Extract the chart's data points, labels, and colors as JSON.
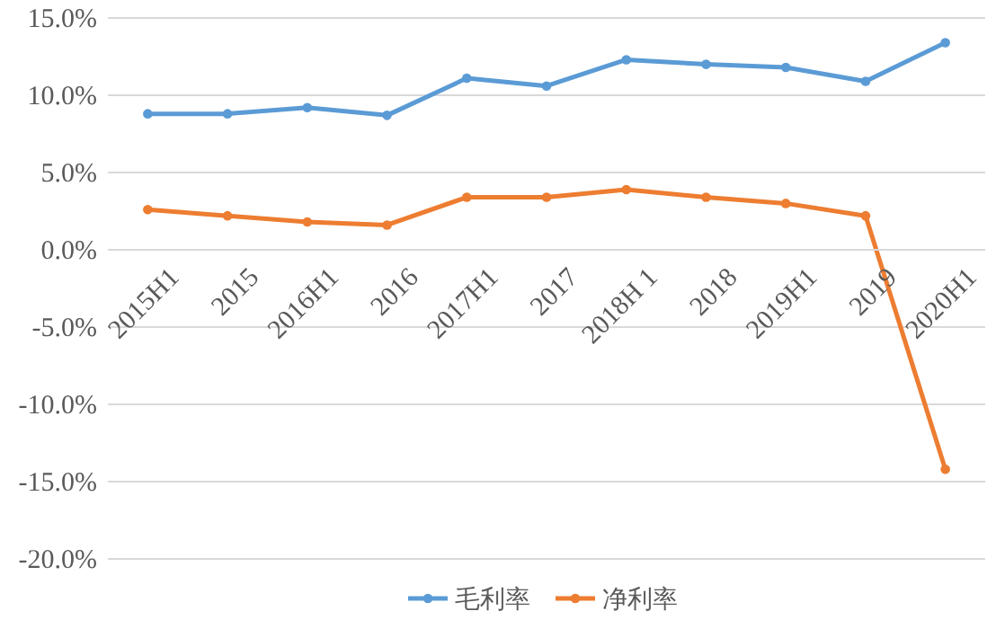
{
  "chart_data": {
    "type": "line",
    "categories": [
      "2015H1",
      "2015",
      "2016H1",
      "2016",
      "2017H1",
      "2017",
      "2018H 1",
      "2018",
      "2019H1",
      "2019",
      "2020H1"
    ],
    "series": [
      {
        "name": "毛利率",
        "color": "#5b9bd5",
        "values": [
          8.8,
          8.8,
          9.2,
          8.7,
          11.1,
          10.6,
          12.3,
          12.0,
          11.8,
          10.9,
          13.4
        ]
      },
      {
        "name": "净利率",
        "color": "#ed7d31",
        "values": [
          2.6,
          2.2,
          1.8,
          1.6,
          3.4,
          3.4,
          3.9,
          3.4,
          3.0,
          2.2,
          -14.2
        ]
      }
    ],
    "ylim": [
      -20,
      15
    ],
    "yticks": [
      {
        "value": -20,
        "label": "-20.0%"
      },
      {
        "value": -15,
        "label": "-15.0%"
      },
      {
        "value": -10,
        "label": "-10.0%"
      },
      {
        "value": -5,
        "label": "-5.0%"
      },
      {
        "value": 0,
        "label": "0.0%"
      },
      {
        "value": 5,
        "label": "5.0%"
      },
      {
        "value": 10,
        "label": "10.0%"
      },
      {
        "value": 15,
        "label": "15.0%"
      }
    ],
    "grid": "y",
    "legend": "bottom",
    "marker": "circle",
    "line_style": "solid"
  }
}
